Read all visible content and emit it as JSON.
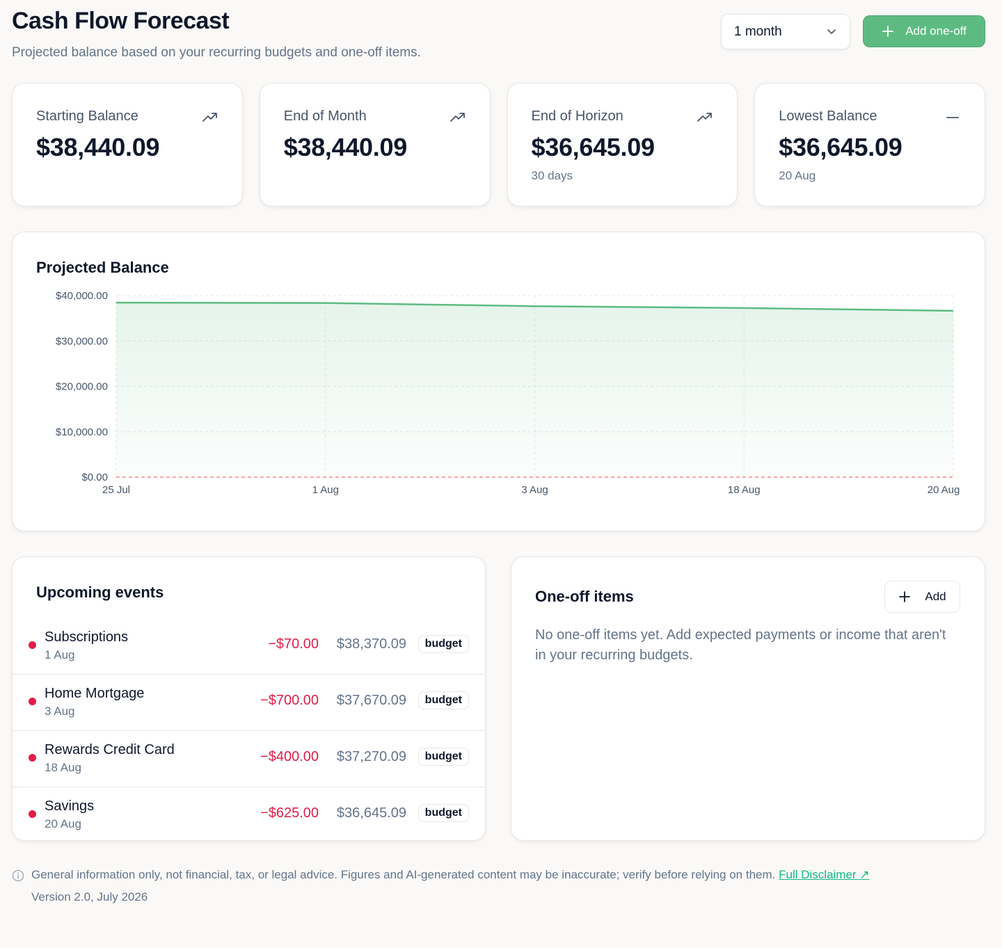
{
  "header": {
    "title": "Cash Flow Forecast",
    "subtitle": "Projected balance based on your recurring budgets and one-off items.",
    "range_value": "1 month",
    "add_oneoff_label": "Add one-off"
  },
  "stats": [
    {
      "label": "Starting Balance",
      "value": "$38,440.09",
      "sub": "",
      "icon": "trending-up-icon"
    },
    {
      "label": "End of Month",
      "value": "$38,440.09",
      "sub": "",
      "icon": "trending-up-icon"
    },
    {
      "label": "End of Horizon",
      "value": "$36,645.09",
      "sub": "30 days",
      "icon": "trending-up-icon"
    },
    {
      "label": "Lowest Balance",
      "value": "$36,645.09",
      "sub": "20 Aug",
      "icon": "minus-icon"
    }
  ],
  "chart": {
    "title": "Projected Balance"
  },
  "chart_data": {
    "type": "area",
    "title": "Projected Balance",
    "x": [
      "25 Jul",
      "1 Aug",
      "3 Aug",
      "18 Aug",
      "20 Aug"
    ],
    "series": [
      {
        "values": [
          38440.09,
          38370.09,
          37670.09,
          37270.09,
          36645.09
        ]
      }
    ],
    "ylim": [
      0,
      40000
    ],
    "yticks": [
      0,
      10000,
      20000,
      30000,
      40000
    ],
    "ytick_labels": [
      "$0.00",
      "$10,000.00",
      "$20,000.00",
      "$30,000.00",
      "$40,000.00"
    ],
    "grid": true,
    "reference_line": {
      "y": 0,
      "style": "dashed",
      "color": "#f87171"
    },
    "line_color": "#5dbb82"
  },
  "events": {
    "title": "Upcoming events",
    "items": [
      {
        "name": "Subscriptions",
        "date": "1 Aug",
        "amount": "−$70.00",
        "balance": "$38,370.09",
        "badge": "budget"
      },
      {
        "name": "Home Mortgage",
        "date": "3 Aug",
        "amount": "−$700.00",
        "balance": "$37,670.09",
        "badge": "budget"
      },
      {
        "name": "Rewards Credit Card",
        "date": "18 Aug",
        "amount": "−$400.00",
        "balance": "$37,270.09",
        "badge": "budget"
      },
      {
        "name": "Savings",
        "date": "20 Aug",
        "amount": "−$625.00",
        "balance": "$36,645.09",
        "badge": "budget"
      }
    ]
  },
  "oneoff": {
    "title": "One-off items",
    "add_label": "Add",
    "empty_text": "No one-off items yet. Add expected payments or income that aren't in your recurring budgets."
  },
  "footer": {
    "disclaimer": "General information only, not financial, tax, or legal advice. Figures and AI-generated content may be inaccurate; verify before relying on them.",
    "link_label": "Full Disclaimer ↗",
    "version": "Version 2.0, July 2026"
  },
  "colors": {
    "accent": "#5dbb82",
    "negative": "#e11d48",
    "link": "#10b981"
  }
}
